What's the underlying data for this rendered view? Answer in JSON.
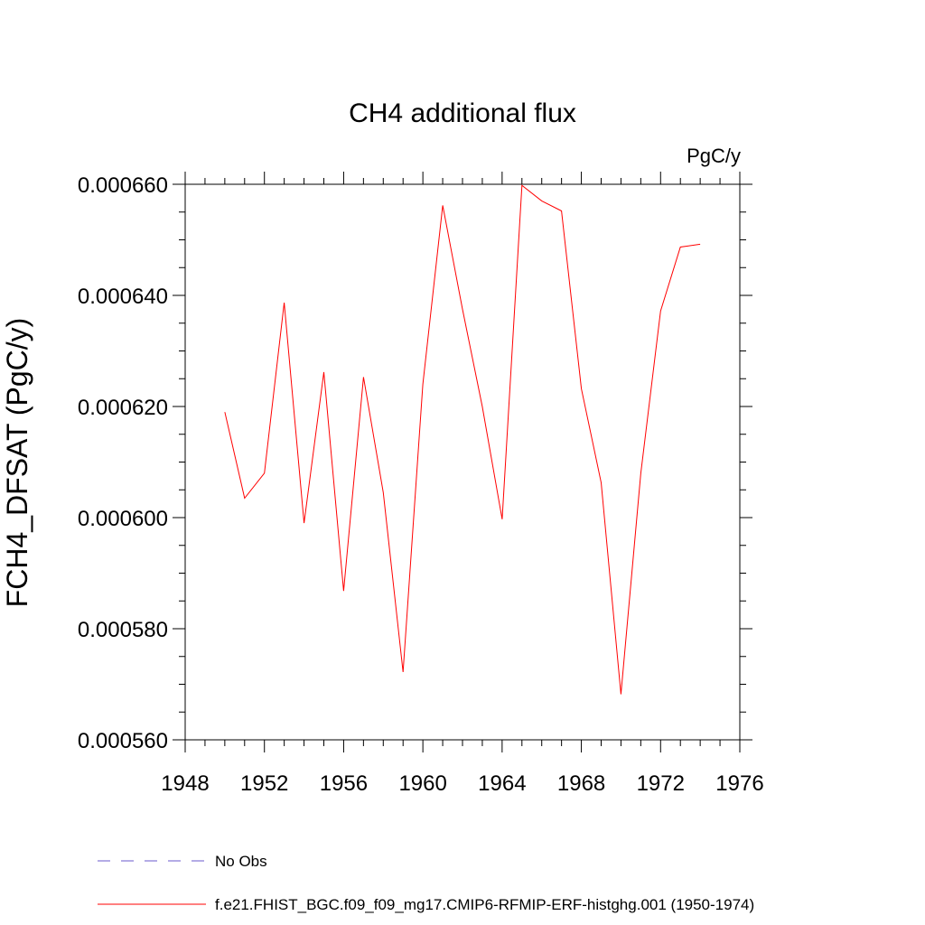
{
  "chart_data": {
    "type": "line",
    "title": "CH4 additional flux",
    "units_label": "PgC/y",
    "ylabel": "FCH4_DFSAT  (PgC/y)",
    "xlabel": "",
    "xlim": [
      1948,
      1976
    ],
    "ylim": [
      0.00056,
      0.00066
    ],
    "x_ticks": [
      1948,
      1952,
      1956,
      1960,
      1964,
      1968,
      1972,
      1976
    ],
    "y_ticks": [
      0.00056,
      0.00058,
      0.0006,
      0.00062,
      0.00064,
      0.00066
    ],
    "y_tick_labels": [
      "0.000560",
      "0.000580",
      "0.000600",
      "0.000620",
      "0.000640",
      "0.000660"
    ],
    "grid": false,
    "legend_position": "bottom",
    "series": [
      {
        "name": "f.e21.FHIST_BGC.f09_f09_mg17.CMIP6-RFMIP-ERF-histghg.001 (1950-1974)",
        "color": "#ff0000",
        "style": "solid",
        "x": [
          1950,
          1951,
          1952,
          1953,
          1954,
          1955,
          1956,
          1957,
          1958,
          1959,
          1960,
          1961,
          1962,
          1963,
          1964,
          1965,
          1966,
          1967,
          1968,
          1969,
          1970,
          1971,
          1972,
          1973,
          1974
        ],
        "y": [
          0.000619,
          0.0006035,
          0.000608,
          0.0006387,
          0.000599,
          0.0006262,
          0.0005868,
          0.0006253,
          0.0006045,
          0.0005722,
          0.000624,
          0.0006562,
          0.0006375,
          0.00062,
          0.0005997,
          0.0006598,
          0.000657,
          0.0006552,
          0.0006232,
          0.0006063,
          0.0005682,
          0.000608,
          0.0006372,
          0.0006487,
          0.0006492
        ]
      },
      {
        "name": "No Obs",
        "color": "#6a5acd",
        "style": "dashed",
        "x": [],
        "y": []
      }
    ]
  }
}
